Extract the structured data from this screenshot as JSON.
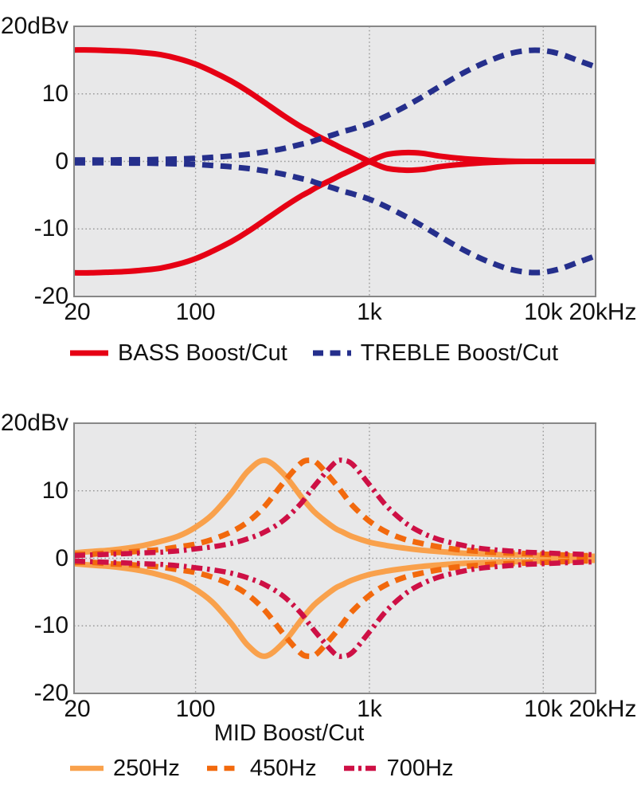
{
  "page": {
    "background": "#ffffff",
    "unit_label": "20dBv"
  },
  "colors": {
    "bass_red": "#e60014",
    "treble_navy": "#252f8c",
    "mid250_orange": "#f9a14c",
    "mid450_orange": "#f2690d",
    "mid700_crimson": "#ce1045",
    "plot_background": "#e8e8e9",
    "plot_border": "#878787",
    "grid": "#9a9a9a"
  },
  "chart_data": [
    {
      "type": "line",
      "title": "",
      "x_unit": "Hz",
      "y_unit": "dBv",
      "x_scale": "log",
      "xlim": [
        20,
        20000
      ],
      "ylim": [
        -20,
        20
      ],
      "grid": "dotted",
      "x_tick_freqs": [
        20,
        100,
        1000,
        10000,
        20000
      ],
      "x_tick_labels": [
        "20",
        "100",
        "1k",
        "10k",
        "20kHz"
      ],
      "y_tick_values": [
        20,
        10,
        0,
        -10,
        -20
      ],
      "y_tick_labels": [
        "20dBv",
        "10",
        "0",
        "-10",
        "-20"
      ],
      "frequencies": [
        20,
        25,
        32,
        40,
        50,
        63,
        80,
        100,
        125,
        160,
        200,
        250,
        320,
        400,
        450,
        500,
        630,
        700,
        800,
        1000,
        1250,
        1600,
        2000,
        2500,
        3200,
        4000,
        5000,
        6300,
        8000,
        10000,
        12500,
        16000,
        20000
      ],
      "series": [
        {
          "name": "BASS Boost/Cut",
          "style": "solid",
          "color": "#e60014",
          "mirror": true,
          "values": [
            16.5,
            16.5,
            16.4,
            16.3,
            16.1,
            15.8,
            15.2,
            14.4,
            13.3,
            11.9,
            10.4,
            8.7,
            6.8,
            5.2,
            4.5,
            3.8,
            2.5,
            1.9,
            1.2,
            0,
            -1.0,
            -1.3,
            -1.2,
            -0.8,
            -0.5,
            -0.3,
            -0.15,
            -0.05,
            0,
            0,
            0,
            0,
            0
          ]
        },
        {
          "name": "TREBLE Boost/Cut",
          "style": "dashed",
          "color": "#252f8c",
          "mirror": true,
          "values": [
            0.2,
            0.2,
            0.2,
            0.25,
            0.25,
            0.3,
            0.35,
            0.45,
            0.6,
            0.8,
            1.05,
            1.4,
            1.9,
            2.5,
            2.8,
            3.2,
            4.0,
            4.4,
            4.8,
            5.6,
            6.7,
            8.1,
            9.5,
            11.0,
            12.6,
            13.9,
            15.0,
            15.9,
            16.4,
            16.4,
            15.9,
            14.9,
            14.0
          ]
        }
      ],
      "legend_position": "below"
    },
    {
      "type": "line",
      "title": "MID Boost/Cut",
      "x_unit": "Hz",
      "y_unit": "dBv",
      "x_scale": "log",
      "xlim": [
        20,
        20000
      ],
      "ylim": [
        -20,
        20
      ],
      "grid": "dotted",
      "x_tick_freqs": [
        20,
        100,
        1000,
        10000,
        20000
      ],
      "x_tick_labels": [
        "20",
        "100",
        "1k",
        "10k",
        "20kHz"
      ],
      "y_tick_values": [
        20,
        10,
        0,
        -10,
        -20
      ],
      "y_tick_labels": [
        "20dBv",
        "10",
        "0",
        "-10",
        "-20"
      ],
      "frequencies": [
        20,
        25,
        32,
        40,
        50,
        63,
        80,
        100,
        125,
        160,
        200,
        250,
        320,
        400,
        450,
        500,
        630,
        700,
        800,
        1000,
        1250,
        1600,
        2000,
        2500,
        3200,
        4000,
        5000,
        6300,
        8000,
        10000,
        12500,
        16000,
        20000
      ],
      "series": [
        {
          "name": "250Hz",
          "style": "solid",
          "color": "#f9a14c",
          "mirror": true,
          "values": [
            0.8,
            1.0,
            1.2,
            1.5,
            1.9,
            2.5,
            3.3,
            4.6,
            6.5,
            9.6,
            12.9,
            14.5,
            12.5,
            9.3,
            7.7,
            6.5,
            4.5,
            3.9,
            3.2,
            2.4,
            1.9,
            1.5,
            1.2,
            1.0,
            0.8,
            0.7,
            0.6,
            0.5,
            0.5,
            0.4,
            0.4,
            0.3,
            0.3
          ]
        },
        {
          "name": "450Hz",
          "style": "dashed",
          "color": "#f2690d",
          "mirror": true,
          "values": [
            0.6,
            0.6,
            0.8,
            0.9,
            1.1,
            1.3,
            1.7,
            2.1,
            2.8,
            3.9,
            5.4,
            7.7,
            11.2,
            14.0,
            14.5,
            14.1,
            11.2,
            9.7,
            7.8,
            5.5,
            3.9,
            2.8,
            2.2,
            1.7,
            1.3,
            1.1,
            0.9,
            0.8,
            0.7,
            0.6,
            0.5,
            0.4,
            0.4
          ]
        },
        {
          "name": "700Hz",
          "style": "dashdot",
          "color": "#ce1045",
          "mirror": true,
          "values": [
            0.4,
            0.5,
            0.6,
            0.7,
            0.8,
            0.9,
            1.1,
            1.4,
            1.7,
            2.2,
            2.9,
            3.9,
            5.6,
            8.0,
            9.7,
            11.2,
            14.1,
            14.5,
            13.9,
            10.9,
            7.8,
            5.3,
            3.8,
            2.8,
            2.1,
            1.6,
            1.3,
            1.1,
            0.9,
            0.8,
            0.7,
            0.6,
            0.5
          ]
        }
      ],
      "legend_position": "below"
    }
  ]
}
